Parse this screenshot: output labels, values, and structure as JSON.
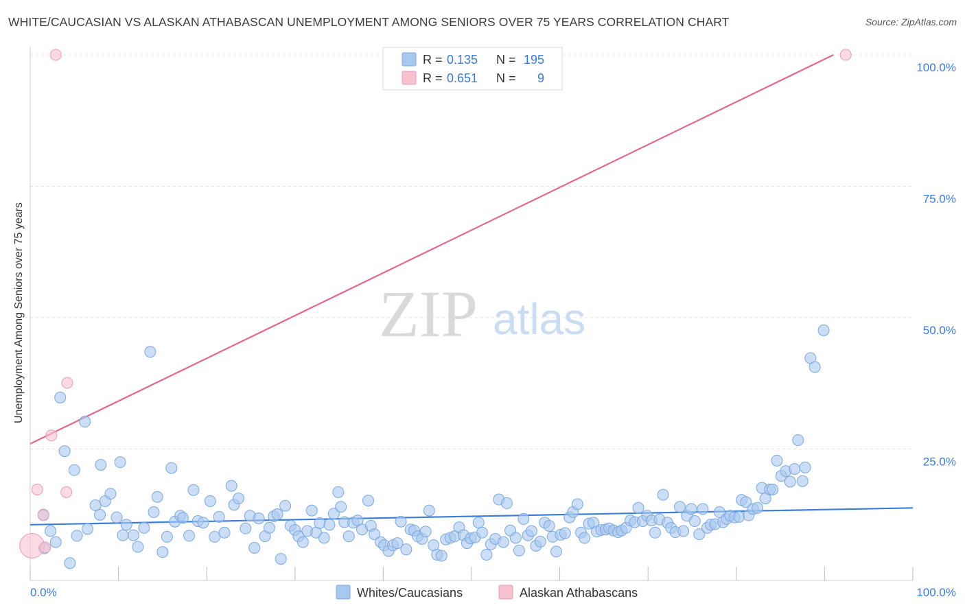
{
  "title": "WHITE/CAUCASIAN VS ALASKAN ATHABASCAN UNEMPLOYMENT AMONG SENIORS OVER 75 YEARS CORRELATION CHART",
  "source": "Source: ZipAtlas.com",
  "watermark": {
    "zip": "ZIP",
    "atlas": "atlas"
  },
  "legend": {
    "rows": [
      {
        "r_label": "R =",
        "r_value": "0.135",
        "n_label": "N =",
        "n_value": "195"
      },
      {
        "r_label": "R =",
        "r_value": "0.651",
        "n_label": "N =",
        "n_value": "9"
      }
    ]
  },
  "colors": {
    "blue_fill": "#a9c8f0",
    "blue_stroke": "#7aa7e0",
    "blue_line": "#3b7dd8",
    "pink_fill": "#f6c2d0",
    "pink_stroke": "#eb9bb4",
    "pink_line": "#e06890",
    "tick_text": "#3d7ad6",
    "grid": "#e0e0e0"
  },
  "chart_data": {
    "type": "scatter",
    "xlabel": "",
    "ylabel": "Unemployment Among Seniors over 75 years",
    "xlim": [
      0,
      100
    ],
    "ylim": [
      0,
      100
    ],
    "x_tick_labels": [
      "0.0%",
      "100.0%"
    ],
    "y_ticks": [
      25,
      50,
      75,
      100
    ],
    "y_tick_labels": [
      "25.0%",
      "50.0%",
      "75.0%",
      "100.0%"
    ],
    "grid": "horizontal dashed",
    "legend_placement": "top-center and bottom",
    "series": [
      {
        "name": "Whites/Caucasians",
        "color": "#a9c8f0",
        "trend": {
          "x": [
            0,
            100
          ],
          "y": [
            10.6,
            13.8
          ]
        },
        "points": [
          [
            1.5,
            12.5
          ],
          [
            1.6,
            6.1
          ],
          [
            2.3,
            9.4
          ],
          [
            2.9,
            7.3
          ],
          [
            3.4,
            34.8
          ],
          [
            3.9,
            24.6
          ],
          [
            4.5,
            3.3
          ],
          [
            5.0,
            21.0
          ],
          [
            5.3,
            8.5
          ],
          [
            6.2,
            30.2
          ],
          [
            6.5,
            9.8
          ],
          [
            7.4,
            14.3
          ],
          [
            7.9,
            12.5
          ],
          [
            8.0,
            22.0
          ],
          [
            8.5,
            15.1
          ],
          [
            9.1,
            16.5
          ],
          [
            9.8,
            12.0
          ],
          [
            10.2,
            22.5
          ],
          [
            10.5,
            8.6
          ],
          [
            10.9,
            10.6
          ],
          [
            11.7,
            8.6
          ],
          [
            12.2,
            6.4
          ],
          [
            12.9,
            10.0
          ],
          [
            13.6,
            43.5
          ],
          [
            14.0,
            13.0
          ],
          [
            14.4,
            15.9
          ],
          [
            15.0,
            5.4
          ],
          [
            15.5,
            8.3
          ],
          [
            16.0,
            21.4
          ],
          [
            16.4,
            11.2
          ],
          [
            17.0,
            12.3
          ],
          [
            17.3,
            11.9
          ],
          [
            18.0,
            8.5
          ],
          [
            18.5,
            17.2
          ],
          [
            19.0,
            11.3
          ],
          [
            19.6,
            11.0
          ],
          [
            20.4,
            15.1
          ],
          [
            20.9,
            8.3
          ],
          [
            21.4,
            12.1
          ],
          [
            22.0,
            9.1
          ],
          [
            22.8,
            18.0
          ],
          [
            23.1,
            14.4
          ],
          [
            23.6,
            15.6
          ],
          [
            24.4,
            9.9
          ],
          [
            24.9,
            12.3
          ],
          [
            25.4,
            6.2
          ],
          [
            25.9,
            11.8
          ],
          [
            26.6,
            8.4
          ],
          [
            27.1,
            10.0
          ],
          [
            27.6,
            12.2
          ],
          [
            28.0,
            12.6
          ],
          [
            28.4,
            4.1
          ],
          [
            28.9,
            14.2
          ],
          [
            29.5,
            10.4
          ],
          [
            30.0,
            9.6
          ],
          [
            30.4,
            8.4
          ],
          [
            30.9,
            7.3
          ],
          [
            31.4,
            9.4
          ],
          [
            31.9,
            13.3
          ],
          [
            32.4,
            9.1
          ],
          [
            32.8,
            10.9
          ],
          [
            33.3,
            8.1
          ],
          [
            33.9,
            10.6
          ],
          [
            34.4,
            12.7
          ],
          [
            34.9,
            16.8
          ],
          [
            35.2,
            14.0
          ],
          [
            35.6,
            11.1
          ],
          [
            36.1,
            8.4
          ],
          [
            36.6,
            11.0
          ],
          [
            37.1,
            11.4
          ],
          [
            37.6,
            9.7
          ],
          [
            38.3,
            15.2
          ],
          [
            38.6,
            10.4
          ],
          [
            39.0,
            8.8
          ],
          [
            39.7,
            7.3
          ],
          [
            40.1,
            6.7
          ],
          [
            40.6,
            5.6
          ],
          [
            41.1,
            6.7
          ],
          [
            41.6,
            7.1
          ],
          [
            42.0,
            11.2
          ],
          [
            42.6,
            5.9
          ],
          [
            43.1,
            9.7
          ],
          [
            43.5,
            9.5
          ],
          [
            43.9,
            8.4
          ],
          [
            44.4,
            7.9
          ],
          [
            44.8,
            9.3
          ],
          [
            45.2,
            13.3
          ],
          [
            45.7,
            6.7
          ],
          [
            46.1,
            4.9
          ],
          [
            46.6,
            4.7
          ],
          [
            47.1,
            7.8
          ],
          [
            47.6,
            8.1
          ],
          [
            48.1,
            8.4
          ],
          [
            48.6,
            10.1
          ],
          [
            49.1,
            8.6
          ],
          [
            49.5,
            7.1
          ],
          [
            49.9,
            8.0
          ],
          [
            50.4,
            8.2
          ],
          [
            50.8,
            11.0
          ],
          [
            51.2,
            9.1
          ],
          [
            51.7,
            4.9
          ],
          [
            52.2,
            6.9
          ],
          [
            52.7,
            7.9
          ],
          [
            53.1,
            15.4
          ],
          [
            53.6,
            7.3
          ],
          [
            54.0,
            14.7
          ],
          [
            54.4,
            9.5
          ],
          [
            55.0,
            8.1
          ],
          [
            55.4,
            5.7
          ],
          [
            55.9,
            11.7
          ],
          [
            56.4,
            8.6
          ],
          [
            56.8,
            9.4
          ],
          [
            57.3,
            6.6
          ],
          [
            57.8,
            7.4
          ],
          [
            58.3,
            11.0
          ],
          [
            58.8,
            10.4
          ],
          [
            59.2,
            8.3
          ],
          [
            59.6,
            5.5
          ],
          [
            60.1,
            8.7
          ],
          [
            60.6,
            9.0
          ],
          [
            61.1,
            12.0
          ],
          [
            61.5,
            13.0
          ],
          [
            62.0,
            14.5
          ],
          [
            62.4,
            9.1
          ],
          [
            62.8,
            8.1
          ],
          [
            63.3,
            10.8
          ],
          [
            63.8,
            11.0
          ],
          [
            64.2,
            9.3
          ],
          [
            64.7,
            9.6
          ],
          [
            65.2,
            9.7
          ],
          [
            65.6,
            9.9
          ],
          [
            66.1,
            9.5
          ],
          [
            66.6,
            9.2
          ],
          [
            67.0,
            9.5
          ],
          [
            67.5,
            10.0
          ],
          [
            68.0,
            11.4
          ],
          [
            68.5,
            11.1
          ],
          [
            68.9,
            13.8
          ],
          [
            69.4,
            11.3
          ],
          [
            69.9,
            12.3
          ],
          [
            70.4,
            11.4
          ],
          [
            70.8,
            9.1
          ],
          [
            71.3,
            11.6
          ],
          [
            71.7,
            16.3
          ],
          [
            72.2,
            11.0
          ],
          [
            72.6,
            10.0
          ],
          [
            73.1,
            9.2
          ],
          [
            73.6,
            14.0
          ],
          [
            74.0,
            9.4
          ],
          [
            74.4,
            12.3
          ],
          [
            74.9,
            13.6
          ],
          [
            75.3,
            11.3
          ],
          [
            75.8,
            8.8
          ],
          [
            76.2,
            13.6
          ],
          [
            76.7,
            10.0
          ],
          [
            77.1,
            10.6
          ],
          [
            77.6,
            10.7
          ],
          [
            78.1,
            13.0
          ],
          [
            78.5,
            11.1
          ],
          [
            78.9,
            11.7
          ],
          [
            79.3,
            12.3
          ],
          [
            79.8,
            12.0
          ],
          [
            80.3,
            12.1
          ],
          [
            80.6,
            15.3
          ],
          [
            81.1,
            14.9
          ],
          [
            81.4,
            12.4
          ],
          [
            81.9,
            13.6
          ],
          [
            82.4,
            13.8
          ],
          [
            82.9,
            17.6
          ],
          [
            83.3,
            15.6
          ],
          [
            83.8,
            17.3
          ],
          [
            84.1,
            17.3
          ],
          [
            84.6,
            22.8
          ],
          [
            85.1,
            19.9
          ],
          [
            85.6,
            20.8
          ],
          [
            86.1,
            18.8
          ],
          [
            86.6,
            21.2
          ],
          [
            87.0,
            26.7
          ],
          [
            87.5,
            18.9
          ],
          [
            87.8,
            21.5
          ],
          [
            88.4,
            42.3
          ],
          [
            88.9,
            40.6
          ],
          [
            89.9,
            47.6
          ]
        ]
      },
      {
        "name": "Alaskan Athabascans",
        "color": "#f6c2d0",
        "trend": {
          "x": [
            0,
            91.0
          ],
          "y": [
            26.0,
            100
          ]
        },
        "points": [
          [
            0.2,
            6.6
          ],
          [
            0.8,
            17.3
          ],
          [
            1.5,
            12.4
          ],
          [
            1.7,
            6.3
          ],
          [
            2.4,
            27.6
          ],
          [
            2.9,
            100
          ],
          [
            4.1,
            16.8
          ],
          [
            4.2,
            37.6
          ],
          [
            92.4,
            100
          ]
        ]
      }
    ]
  }
}
